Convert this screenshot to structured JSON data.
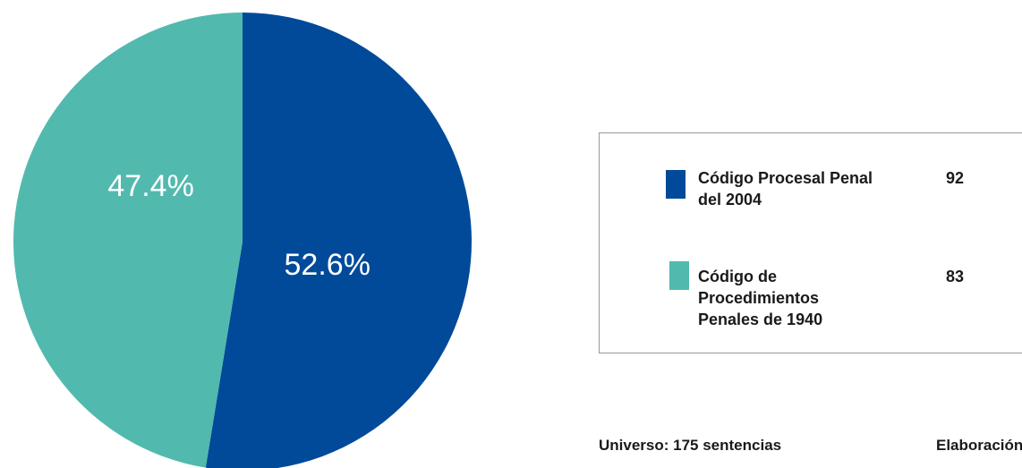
{
  "chart_data": {
    "type": "pie",
    "slices": [
      {
        "label": "Código Procesal Penal del 2004",
        "value": 92,
        "percent_label": "52.6%",
        "color": "#004a99"
      },
      {
        "label": "Código de Procedimientos Penales de 1940",
        "value": 83,
        "percent_label": "47.4%",
        "color": "#52b9ae"
      }
    ],
    "legend": [
      {
        "label": "Código Procesal Penal del 2004",
        "count": "92",
        "color": "#004a99"
      },
      {
        "label": "Código de Procedimientos Penales de 1940",
        "count": "83",
        "color": "#52b9ae"
      }
    ],
    "legend_position": "right"
  },
  "footnotes": {
    "universe": "Universo: 175 sentencias",
    "credit": "Elaboración"
  }
}
